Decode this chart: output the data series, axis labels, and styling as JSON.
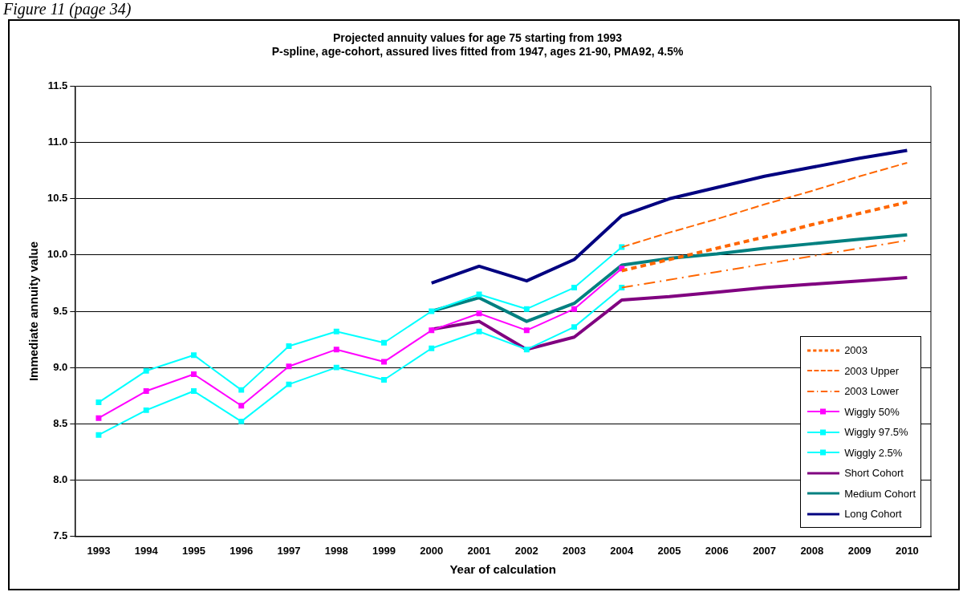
{
  "chart_data": {
    "type": "line",
    "title": "Projected annuity values for age 75 starting from 1993",
    "subtitle": "P-spline, age-cohort, assured lives fitted from 1947, ages 21-90, PMA92, 4.5%",
    "xlabel": "Year of calculation",
    "ylabel": "Immediate annuity value",
    "annotations": [
      "Figure 11 (page 34)"
    ],
    "categories": [
      "1993",
      "1994",
      "1995",
      "1996",
      "1997",
      "1998",
      "1999",
      "2000",
      "2001",
      "2002",
      "2003",
      "2004",
      "2005",
      "2006",
      "2007",
      "2008",
      "2009",
      "2010"
    ],
    "ylim": [
      7.5,
      11.5
    ],
    "yticks": [
      7.5,
      {
        "value": 8,
        "label": "8.0"
      },
      8.5,
      {
        "value": 9,
        "label": "9.0"
      },
      9.5,
      {
        "value": 10,
        "label": "10.0"
      },
      10.5,
      {
        "value": 11,
        "label": "11.0"
      },
      11.5
    ],
    "grid": "y",
    "legend": "bottom right",
    "series": [
      {
        "name": "2003",
        "color": "#ff6600",
        "line_style": "dotted",
        "marker": "none",
        "values": [
          null,
          null,
          null,
          null,
          null,
          null,
          null,
          null,
          null,
          null,
          null,
          9.86,
          9.96,
          10.06,
          10.16,
          10.27,
          10.37,
          10.47
        ]
      },
      {
        "name": "2003 Upper",
        "color": "#ff6600",
        "line_style": "dashed",
        "marker": "none",
        "values": [
          null,
          null,
          null,
          null,
          null,
          null,
          null,
          null,
          null,
          null,
          null,
          10.07,
          10.2,
          10.32,
          10.45,
          10.57,
          10.7,
          10.82
        ]
      },
      {
        "name": "2003 Lower",
        "color": "#ff6600",
        "line_style": "dashdot",
        "marker": "none",
        "values": [
          null,
          null,
          null,
          null,
          null,
          null,
          null,
          null,
          null,
          null,
          null,
          9.71,
          9.78,
          9.85,
          9.92,
          9.99,
          10.06,
          10.13
        ]
      },
      {
        "name": "Wiggly 50%",
        "color": "#ff00ff",
        "line_style": "solid",
        "marker": "square",
        "values": [
          8.55,
          8.79,
          8.94,
          8.66,
          9.01,
          9.16,
          9.05,
          9.33,
          9.48,
          9.33,
          9.52,
          9.88,
          null,
          null,
          null,
          null,
          null,
          null
        ]
      },
      {
        "name": "Wiggly 97.5%",
        "color": "#00ffff",
        "line_style": "solid",
        "marker": "square",
        "values": [
          8.69,
          8.97,
          9.11,
          8.8,
          9.19,
          9.32,
          9.22,
          9.5,
          9.65,
          9.52,
          9.71,
          10.07,
          null,
          null,
          null,
          null,
          null,
          null
        ]
      },
      {
        "name": "Wiggly 2.5%",
        "color": "#00ffff",
        "line_style": "solid",
        "marker": "square",
        "values": [
          8.4,
          8.62,
          8.79,
          8.52,
          8.85,
          9.0,
          8.89,
          9.17,
          9.32,
          9.16,
          9.36,
          9.71,
          null,
          null,
          null,
          null,
          null,
          null
        ]
      },
      {
        "name": "Short Cohort",
        "color": "#800080",
        "line_style": "solid",
        "marker": "none",
        "values": [
          null,
          null,
          null,
          null,
          null,
          null,
          null,
          9.34,
          9.41,
          9.16,
          9.27,
          9.6,
          9.63,
          9.67,
          9.71,
          9.74,
          9.77,
          9.8
        ]
      },
      {
        "name": "Medium Cohort",
        "color": "#008080",
        "line_style": "solid",
        "marker": "none",
        "values": [
          null,
          null,
          null,
          null,
          null,
          null,
          null,
          9.5,
          9.62,
          9.41,
          9.57,
          9.91,
          9.97,
          10.01,
          10.06,
          10.1,
          10.14,
          10.18
        ]
      },
      {
        "name": "Long Cohort",
        "color": "#000080",
        "line_style": "solid",
        "marker": "none",
        "values": [
          null,
          null,
          null,
          null,
          null,
          null,
          null,
          9.75,
          9.9,
          9.77,
          9.96,
          10.35,
          10.5,
          10.6,
          10.7,
          10.78,
          10.86,
          10.93
        ]
      }
    ]
  }
}
